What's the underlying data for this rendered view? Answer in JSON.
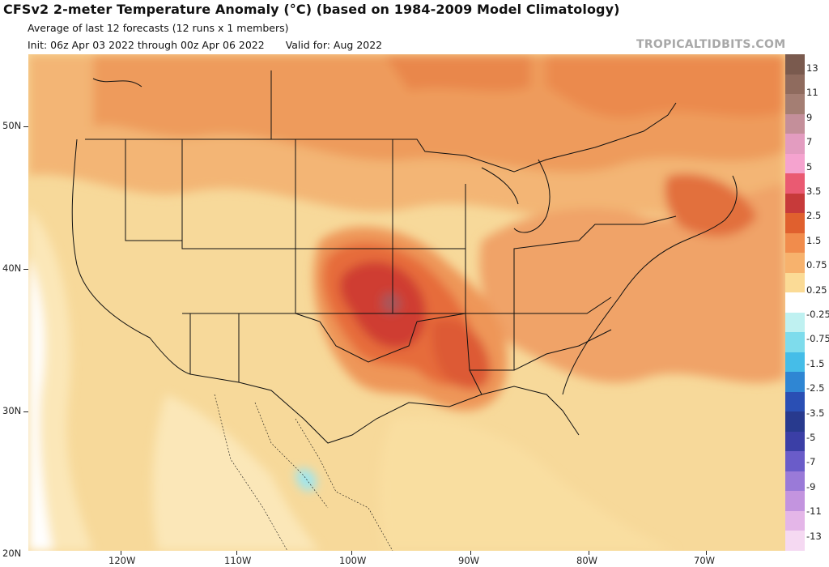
{
  "header": {
    "title": "CFSv2 2-meter Temperature Anomaly (°C) (based on 1984-2009 Model Climatology)",
    "line1": "Average of last 12 forecasts (12 runs x 1 members)",
    "init": "Init: 06z Apr 03 2022 through 00z Apr 06 2022",
    "valid": "Valid for: Aug 2022",
    "brand": "TROPICALTIDBITS.COM"
  },
  "axes": {
    "lat_labels": [
      "50N",
      "40N",
      "30N",
      "20N"
    ],
    "lon_labels": [
      "120W",
      "110W",
      "100W",
      "90W",
      "80W",
      "70W"
    ]
  },
  "colorbar": {
    "labels": [
      "13",
      "11",
      "9",
      "7",
      "5",
      "3.5",
      "2.5",
      "1.5",
      "0.75",
      "0.25",
      "-0.25",
      "-0.75",
      "-1.5",
      "-2.5",
      "-3.5",
      "-5",
      "-7",
      "-9",
      "-11",
      "-13"
    ],
    "colors": [
      "#7a5a4e",
      "#8f6b5e",
      "#a47e73",
      "#c48f9a",
      "#e39cc0",
      "#f5a3cf",
      "#ea5a72",
      "#c73a3a",
      "#e0602e",
      "#f18c4c",
      "#f7b26d",
      "#fbdb96",
      "#ffffff",
      "#bff1f1",
      "#7edcec",
      "#45bde8",
      "#2f86d3",
      "#2a4fb4",
      "#283a8e",
      "#3b3fa6",
      "#6a5cc9",
      "#9a7ad8",
      "#c394df",
      "#e4b6e8",
      "#f5d9f2"
    ]
  }
}
